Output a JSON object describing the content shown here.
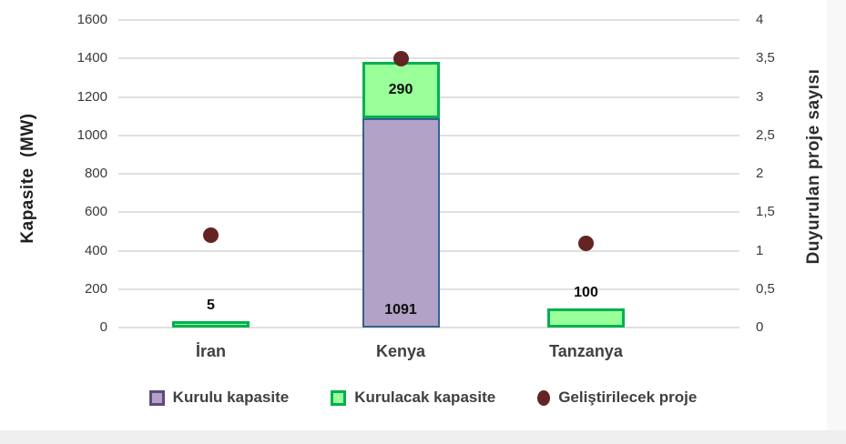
{
  "chart_data": {
    "type": "bar",
    "subtype": "stacked-columns-with-scatter-overlay",
    "categories": [
      "İran",
      "Kenya",
      "Tanzanya"
    ],
    "series": [
      {
        "name": "Kurulu kapasite",
        "type": "bar",
        "axis": "left",
        "values": [
          0,
          1091,
          0
        ],
        "fill": "#b3a2c7",
        "border": "#376092",
        "legend_marker_border": "#5f4a7a"
      },
      {
        "name": "Kurulacak kapasite",
        "type": "bar",
        "axis": "left",
        "values": [
          5,
          290,
          100
        ],
        "fill": "#99ff99",
        "border": "#00b050",
        "legend_marker_border": "#00b050"
      },
      {
        "name": "Geliştirilecek proje",
        "type": "scatter",
        "axis": "right",
        "values": [
          1.2,
          3.5,
          1.1
        ],
        "color": "#632423"
      }
    ],
    "data_labels": true,
    "left_axis": {
      "title": "Kapasite  (MW)",
      "min": 0,
      "max": 1600,
      "tick_labels": [
        "0",
        "200",
        "400",
        "600",
        "800",
        "1000",
        "1200",
        "1400",
        "1600"
      ]
    },
    "right_axis": {
      "title": "Duyurulan proje sayısı",
      "min": 0,
      "max": 4,
      "tick_labels": [
        "0",
        "0,5",
        "1",
        "1,5",
        "2",
        "2,5",
        "3",
        "3,5",
        "4"
      ]
    },
    "grid": true,
    "legend_position": "bottom",
    "colors": {
      "gridline": "#e0e0e0",
      "tick_text": "#3a3a3a",
      "category_text": "#404040",
      "data_label_text": "#0d0d0d"
    }
  }
}
